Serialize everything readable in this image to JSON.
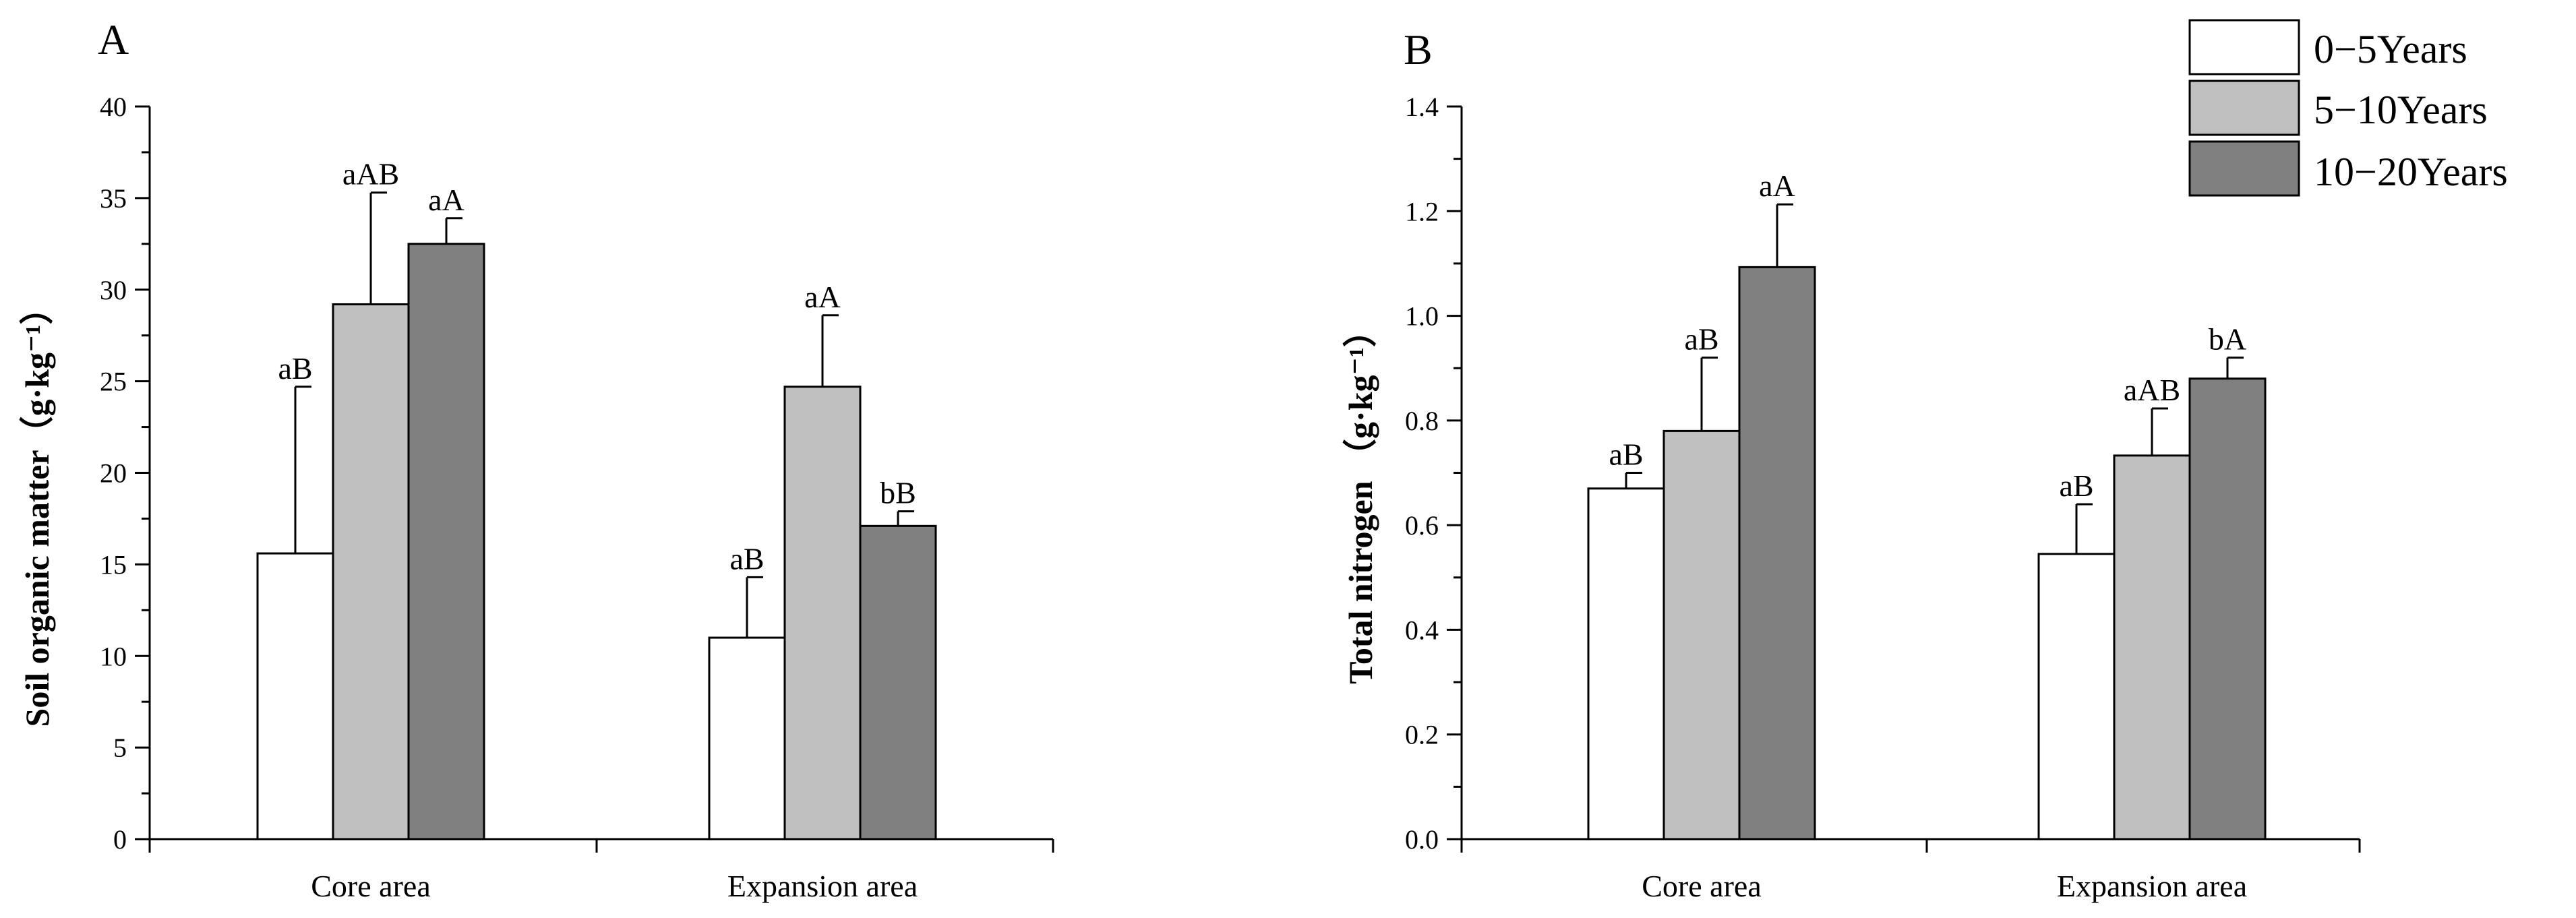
{
  "chart_data": [
    {
      "type": "bar",
      "panel": "A",
      "ylabel": "Soil organic matter（g·kg⁻¹）",
      "ylim": [
        0,
        40
      ],
      "yticks": [
        "0",
        "5",
        "10",
        "15",
        "20",
        "25",
        "30",
        "35",
        "40"
      ],
      "categories": [
        "Core area",
        "Expansion area"
      ],
      "series": [
        {
          "name": "0−5Years",
          "values": [
            15.6,
            11.0
          ],
          "errors": [
            9.1,
            3.3
          ],
          "labels": [
            "aB",
            "aB"
          ]
        },
        {
          "name": "5−10Years",
          "values": [
            29.2,
            24.7
          ],
          "errors": [
            6.1,
            3.9
          ],
          "labels": [
            "aAB",
            "aA"
          ]
        },
        {
          "name": "10−20Years",
          "values": [
            32.5,
            17.1
          ],
          "errors": [
            1.4,
            0.8
          ],
          "labels": [
            "aA",
            "bB"
          ]
        }
      ]
    },
    {
      "type": "bar",
      "panel": "B",
      "ylabel": "Total nitrogen  （g·kg⁻¹）",
      "ylim": [
        0,
        1.4
      ],
      "yticks": [
        "0.0",
        "0.2",
        "0.4",
        "0.6",
        "0.8",
        "1.0",
        "1.2",
        "1.4"
      ],
      "categories": [
        "Core area",
        "Expansion area"
      ],
      "series": [
        {
          "name": "0−5Years",
          "values": [
            0.67,
            0.545
          ],
          "errors": [
            0.03,
            0.095
          ],
          "labels": [
            "aB",
            "aB"
          ]
        },
        {
          "name": "5−10Years",
          "values": [
            0.78,
            0.733
          ],
          "errors": [
            0.14,
            0.09
          ],
          "labels": [
            "aB",
            "aAB"
          ]
        },
        {
          "name": "10−20Years",
          "values": [
            1.093,
            0.88
          ],
          "errors": [
            0.12,
            0.04
          ],
          "labels": [
            "aA",
            "bA"
          ]
        }
      ]
    }
  ],
  "legend": [
    {
      "label": "0−5Years",
      "color": "#ffffff"
    },
    {
      "label": "5−10Years",
      "color": "#c0c0c0"
    },
    {
      "label": "10−20Years",
      "color": "#808080"
    }
  ],
  "colors": {
    "series": [
      "#ffffff",
      "#c0c0c0",
      "#808080"
    ],
    "stroke": "#000000"
  }
}
